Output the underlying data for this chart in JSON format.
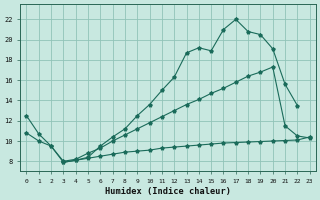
{
  "xlabel": "Humidex (Indice chaleur)",
  "bg_color": "#c8e8e0",
  "grid_color": "#90c4b8",
  "line_color": "#1a6b5a",
  "xlim": [
    -0.5,
    23.5
  ],
  "ylim": [
    7.0,
    23.5
  ],
  "yticks": [
    8,
    10,
    12,
    14,
    16,
    18,
    20,
    22
  ],
  "xticks": [
    0,
    1,
    2,
    3,
    4,
    5,
    6,
    7,
    8,
    9,
    10,
    11,
    12,
    13,
    14,
    15,
    16,
    17,
    18,
    19,
    20,
    21,
    22,
    23
  ],
  "series1_x": [
    0,
    1,
    2,
    3,
    4,
    5,
    6,
    7,
    8,
    9,
    10,
    11,
    12,
    13,
    14,
    15,
    16,
    17,
    18,
    19,
    20,
    21,
    22
  ],
  "series1_y": [
    12.5,
    10.7,
    9.5,
    7.9,
    8.1,
    8.4,
    9.5,
    10.4,
    11.2,
    12.5,
    13.6,
    15.0,
    16.3,
    18.7,
    19.2,
    18.9,
    21.0,
    22.0,
    20.8,
    20.5,
    19.1,
    15.6,
    13.5
  ],
  "series2_x": [
    0,
    1,
    2,
    3,
    4,
    5,
    6,
    7,
    8,
    9,
    10,
    11,
    12,
    13,
    14,
    15,
    16,
    17,
    18,
    19,
    20,
    21,
    22,
    23
  ],
  "series2_y": [
    10.8,
    10.0,
    9.5,
    8.0,
    8.2,
    8.8,
    9.3,
    10.0,
    10.6,
    11.2,
    11.8,
    12.4,
    13.0,
    13.6,
    14.1,
    14.7,
    15.2,
    15.8,
    16.4,
    16.8,
    17.3,
    11.5,
    10.5,
    10.3
  ],
  "series3_x": [
    3,
    4,
    5,
    6,
    7,
    8,
    9,
    10,
    11,
    12,
    13,
    14,
    15,
    16,
    17,
    18,
    19,
    20,
    21,
    22,
    23
  ],
  "series3_y": [
    7.9,
    8.1,
    8.3,
    8.5,
    8.7,
    8.9,
    9.0,
    9.1,
    9.3,
    9.4,
    9.5,
    9.6,
    9.7,
    9.8,
    9.85,
    9.9,
    9.95,
    10.0,
    10.05,
    10.1,
    10.4
  ]
}
